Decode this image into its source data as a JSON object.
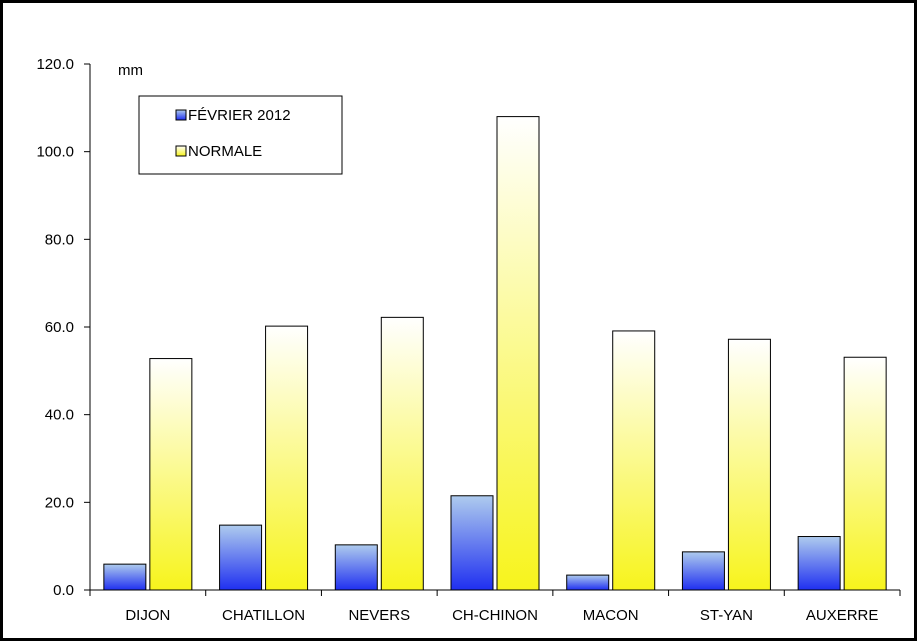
{
  "chart_data": {
    "type": "bar",
    "title": "",
    "xlabel": "",
    "ylabel": "",
    "unit": "mm",
    "categories": [
      "DIJON",
      "CHATILLON",
      "NEVERS",
      "CH-CHINON",
      "MACON",
      "ST-YAN",
      "AUXERRE"
    ],
    "series": [
      {
        "name": "FÉVRIER 2012",
        "values": [
          5.9,
          14.8,
          10.3,
          21.5,
          3.4,
          8.7,
          12.2
        ],
        "color": "#3a4ee8",
        "color_light": "#a9c7ee"
      },
      {
        "name": "NORMALE",
        "values": [
          52.8,
          60.2,
          62.2,
          108.0,
          59.1,
          57.2,
          53.1
        ],
        "color": "#f7f41c",
        "color_light": "#ffffff"
      }
    ],
    "ylim": [
      0,
      120
    ],
    "yticks": [
      "0.0",
      "20.0",
      "40.0",
      "60.0",
      "80.0",
      "100.0",
      "120.0"
    ],
    "ytick_values": [
      0,
      20,
      40,
      60,
      80,
      100,
      120
    ],
    "grid": false,
    "legend_position": "top-left"
  }
}
